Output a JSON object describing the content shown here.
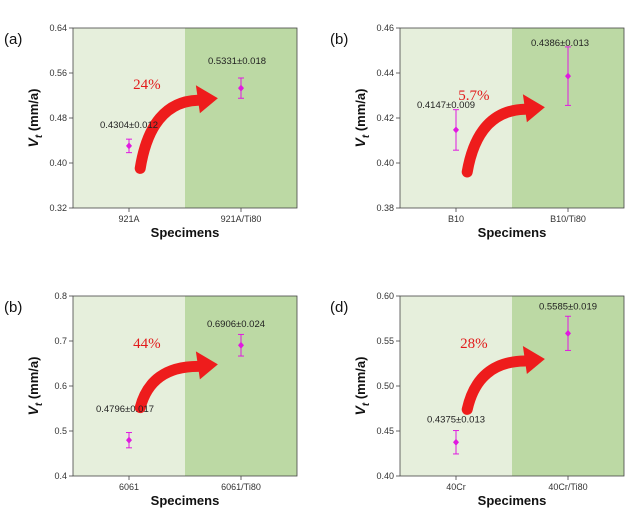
{
  "chart_data": [
    {
      "type": "scatter",
      "panel_label": "(a)",
      "categories": [
        "921A",
        "921A/Ti80"
      ],
      "values": [
        0.4304,
        0.5331
      ],
      "errors": [
        0.012,
        0.018
      ],
      "value_labels": [
        "0.4304±0.012",
        "0.5331±0.018"
      ],
      "yticks": [
        0.32,
        0.4,
        0.48,
        0.56,
        0.64
      ],
      "ytick_labels": [
        "0.32",
        "0.40",
        "0.48",
        "0.56",
        "0.64"
      ],
      "ylim": [
        0.32,
        0.64
      ],
      "increase_label": "24%",
      "xlabel": "Specimens",
      "ylabel_main": "V",
      "ylabel_sub": "t",
      "ylabel_unit": " (mm/a)"
    },
    {
      "type": "scatter",
      "panel_label": "(b)",
      "categories": [
        "B10",
        "B10/Ti80"
      ],
      "values": [
        0.4147,
        0.4386
      ],
      "errors": [
        0.009,
        0.013
      ],
      "value_labels": [
        "0.4147±0.009",
        "0.4386±0.013"
      ],
      "yticks": [
        0.38,
        0.4,
        0.42,
        0.44,
        0.46
      ],
      "ytick_labels": [
        "0.38",
        "0.40",
        "0.42",
        "0.44",
        "0.46"
      ],
      "ylim": [
        0.38,
        0.46
      ],
      "increase_label": "5.7%",
      "xlabel": "Specimens",
      "ylabel_main": "V",
      "ylabel_sub": "t",
      "ylabel_unit": " (mm/a)"
    },
    {
      "type": "scatter",
      "panel_label": "(b)",
      "categories": [
        "6061",
        "6061/Ti80"
      ],
      "values": [
        0.4796,
        0.6906
      ],
      "errors": [
        0.017,
        0.024
      ],
      "value_labels": [
        "0.4796±0.017",
        "0.6906±0.024"
      ],
      "yticks": [
        0.4,
        0.5,
        0.6,
        0.7,
        0.8
      ],
      "ytick_labels": [
        "0.4",
        "0.5",
        "0.6",
        "0.7",
        "0.8"
      ],
      "ylim": [
        0.4,
        0.8
      ],
      "increase_label": "44%",
      "xlabel": "Specimens",
      "ylabel_main": "V",
      "ylabel_sub": "t",
      "ylabel_unit": " (mm/a)"
    },
    {
      "type": "scatter",
      "panel_label": "(d)",
      "categories": [
        "40Cr",
        "40Cr/Ti80"
      ],
      "values": [
        0.4375,
        0.5585
      ],
      "errors": [
        0.013,
        0.019
      ],
      "value_labels": [
        "0.4375±0.013",
        "0.5585±0.019"
      ],
      "yticks": [
        0.4,
        0.45,
        0.5,
        0.55,
        0.6
      ],
      "ytick_labels": [
        "0.40",
        "0.45",
        "0.50",
        "0.55",
        "0.60"
      ],
      "ylim": [
        0.4,
        0.6
      ],
      "increase_label": "28%",
      "xlabel": "Specimens",
      "ylabel_main": "V",
      "ylabel_sub": "t",
      "ylabel_unit": " (mm/a)"
    }
  ],
  "colors": {
    "left_band": "#e6efdc",
    "right_band": "#bcd9a4",
    "marker": "#e01ae0",
    "arrow": "#ee1c1c",
    "axis": "#444444"
  }
}
